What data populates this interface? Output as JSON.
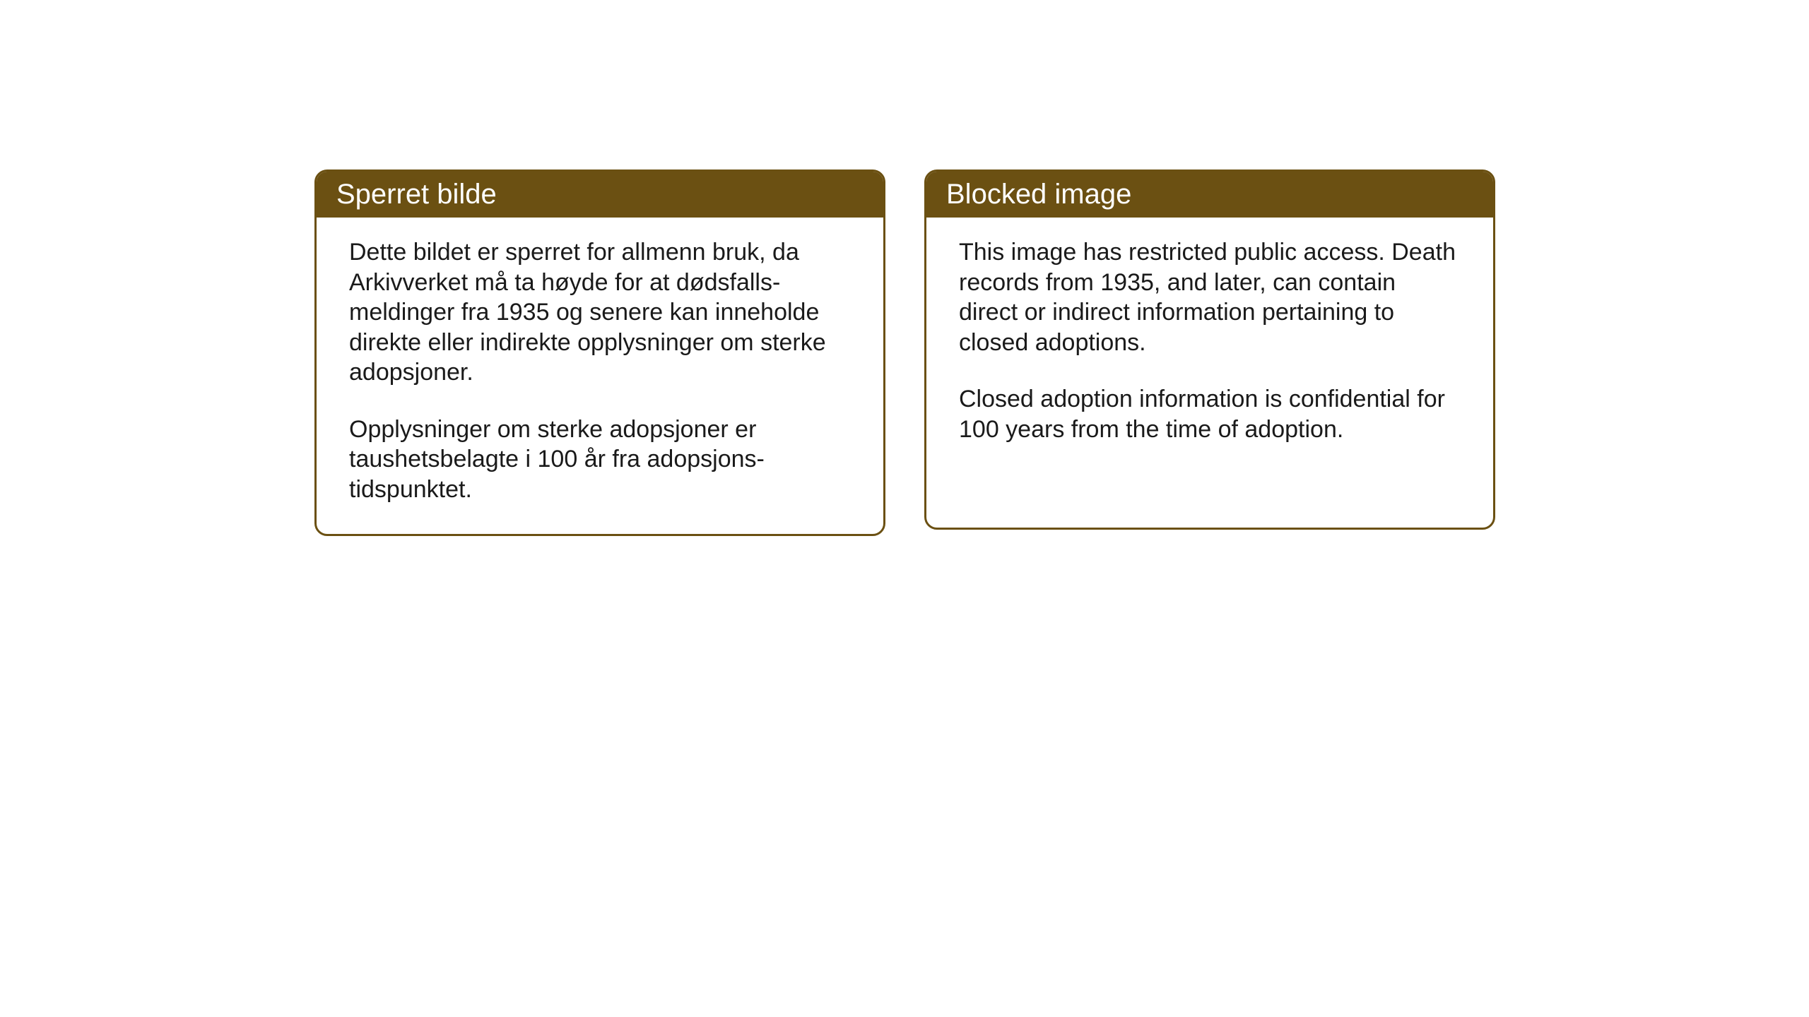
{
  "cards": {
    "left": {
      "title": "Sperret bilde",
      "paragraph1": "Dette bildet er sperret for allmenn bruk, da Arkivverket må ta høyde for at dødsfalls-meldinger fra 1935 og senere kan inneholde direkte eller indirekte opplysninger om sterke adopsjoner.",
      "paragraph2": "Opplysninger om sterke adopsjoner er taushetsbelagte i 100 år fra adopsjons-tidspunktet."
    },
    "right": {
      "title": "Blocked image",
      "paragraph1": "This image has restricted public access. Death records from 1935, and later, can contain direct or indirect information pertaining to closed adoptions.",
      "paragraph2": "Closed adoption information is confidential for 100 years from the time of adoption."
    }
  },
  "styling": {
    "header_bg_color": "#6b5012",
    "header_text_color": "#ffffff",
    "border_color": "#6b5012",
    "card_bg_color": "#ffffff",
    "body_text_color": "#1a1a1a",
    "page_bg_color": "#ffffff",
    "header_fontsize": 40,
    "body_fontsize": 34,
    "border_radius": 18,
    "border_width": 3
  }
}
